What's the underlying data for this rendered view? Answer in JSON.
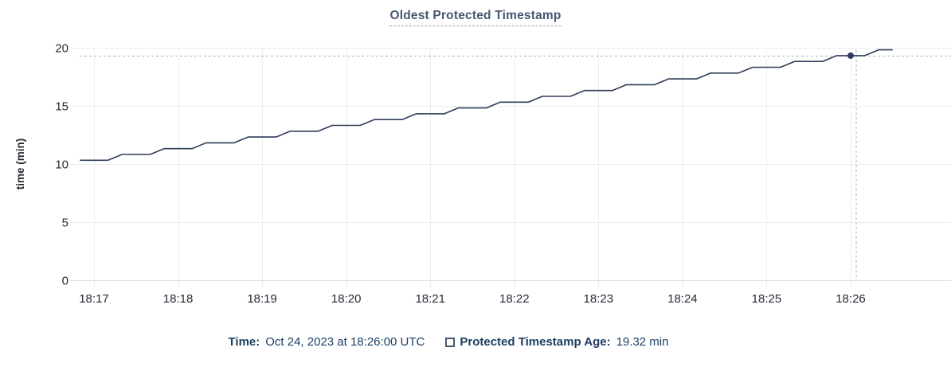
{
  "header": {
    "title": "Oldest Protected Timestamp"
  },
  "footer": {
    "time_label": "Time:",
    "time_value": "Oct 24, 2023 at 18:26:00 UTC",
    "series_label": "Protected Timestamp Age:",
    "series_value": "19.32 min"
  },
  "colors": {
    "series_line": "#2e3d59",
    "crosshair": "#a4b6c2",
    "grid": "#ededed",
    "axis_line": "#dedede",
    "tick_text": "#242a35",
    "title_text": "#475872",
    "title_underline": "#9aa5bd",
    "footer_text": "#1c3e63",
    "swatch_border": "#475872"
  },
  "chart_data": {
    "type": "line",
    "title": "Oldest Protected Timestamp",
    "xlabel": "",
    "ylabel": "time (min)",
    "ylim": [
      0,
      20
    ],
    "y_ticks": [
      0,
      5,
      10,
      15,
      20
    ],
    "x_ticks": [
      "18:17",
      "18:18",
      "18:19",
      "18:20",
      "18:21",
      "18:22",
      "18:23",
      "18:24",
      "18:25",
      "18:26"
    ],
    "grid": true,
    "legend_position": "bottom",
    "crosshair": {
      "time": "18:26:00",
      "value": 19.32,
      "time_label": "Oct 24, 2023 at 18:26:00 UTC",
      "value_label": "19.32 min"
    },
    "series": [
      {
        "name": "Protected Timestamp Age",
        "unit": "min",
        "points": [
          [
            "18:16:50",
            10.32
          ],
          [
            "18:17:00",
            10.32
          ],
          [
            "18:17:10",
            10.32
          ],
          [
            "18:17:20",
            10.82
          ],
          [
            "18:17:30",
            10.82
          ],
          [
            "18:17:40",
            10.82
          ],
          [
            "18:17:50",
            11.32
          ],
          [
            "18:18:00",
            11.32
          ],
          [
            "18:18:10",
            11.32
          ],
          [
            "18:18:20",
            11.82
          ],
          [
            "18:18:30",
            11.82
          ],
          [
            "18:18:40",
            11.82
          ],
          [
            "18:18:50",
            12.32
          ],
          [
            "18:19:00",
            12.32
          ],
          [
            "18:19:10",
            12.32
          ],
          [
            "18:19:20",
            12.82
          ],
          [
            "18:19:30",
            12.82
          ],
          [
            "18:19:40",
            12.82
          ],
          [
            "18:19:50",
            13.32
          ],
          [
            "18:20:00",
            13.32
          ],
          [
            "18:20:10",
            13.32
          ],
          [
            "18:20:20",
            13.82
          ],
          [
            "18:20:30",
            13.82
          ],
          [
            "18:20:40",
            13.82
          ],
          [
            "18:20:50",
            14.32
          ],
          [
            "18:21:00",
            14.32
          ],
          [
            "18:21:10",
            14.32
          ],
          [
            "18:21:20",
            14.82
          ],
          [
            "18:21:30",
            14.82
          ],
          [
            "18:21:40",
            14.82
          ],
          [
            "18:21:50",
            15.32
          ],
          [
            "18:22:00",
            15.32
          ],
          [
            "18:22:10",
            15.32
          ],
          [
            "18:22:20",
            15.82
          ],
          [
            "18:22:30",
            15.82
          ],
          [
            "18:22:40",
            15.82
          ],
          [
            "18:22:50",
            16.32
          ],
          [
            "18:23:00",
            16.32
          ],
          [
            "18:23:10",
            16.32
          ],
          [
            "18:23:20",
            16.82
          ],
          [
            "18:23:30",
            16.82
          ],
          [
            "18:23:40",
            16.82
          ],
          [
            "18:23:50",
            17.32
          ],
          [
            "18:24:00",
            17.32
          ],
          [
            "18:24:10",
            17.32
          ],
          [
            "18:24:20",
            17.82
          ],
          [
            "18:24:30",
            17.82
          ],
          [
            "18:24:40",
            17.82
          ],
          [
            "18:24:50",
            18.32
          ],
          [
            "18:25:00",
            18.32
          ],
          [
            "18:25:10",
            18.32
          ],
          [
            "18:25:20",
            18.82
          ],
          [
            "18:25:30",
            18.82
          ],
          [
            "18:25:40",
            18.82
          ],
          [
            "18:25:50",
            19.32
          ],
          [
            "18:26:00",
            19.32
          ],
          [
            "18:26:10",
            19.32
          ],
          [
            "18:26:20",
            19.82
          ],
          [
            "18:26:30",
            19.82
          ]
        ]
      }
    ]
  }
}
